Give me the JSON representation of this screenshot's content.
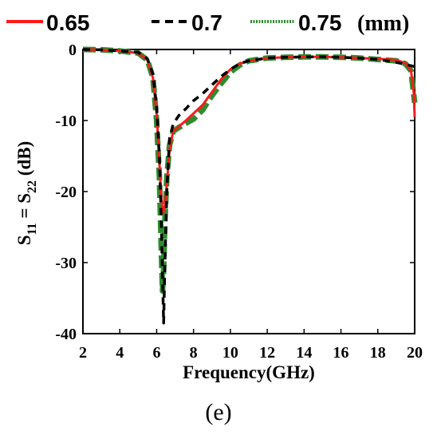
{
  "chart_data": {
    "type": "line",
    "title": "",
    "panel_label": "(e)",
    "xlabel": "Frequency(GHz)",
    "ylabel": "S11 = S22 (dB)",
    "ylabel_parts": {
      "s": "S",
      "sub1": "11",
      "eq": " = S",
      "sub2": "22",
      "unit": " (dB)"
    },
    "xlim": [
      2,
      20
    ],
    "ylim": [
      -40,
      0
    ],
    "xticks": [
      "2",
      "4",
      "6",
      "8",
      "10",
      "12",
      "14",
      "16",
      "18",
      "20"
    ],
    "yticks": [
      "0",
      "-10",
      "-20",
      "-30",
      "-40"
    ],
    "legend_unit": "(mm)",
    "grid": false,
    "legend_position": "top",
    "series": [
      {
        "name": "0.65",
        "color": "#ff1a1a",
        "style": "solid",
        "points": [
          [
            2,
            0
          ],
          [
            3,
            -0.05
          ],
          [
            4,
            -0.2
          ],
          [
            5,
            -0.5
          ],
          [
            5.5,
            -1.5
          ],
          [
            5.8,
            -4
          ],
          [
            6.0,
            -9
          ],
          [
            6.15,
            -16
          ],
          [
            6.25,
            -21
          ],
          [
            6.35,
            -23
          ],
          [
            6.45,
            -22
          ],
          [
            6.55,
            -19
          ],
          [
            6.7,
            -14
          ],
          [
            6.9,
            -11.5
          ],
          [
            7.5,
            -10.2
          ],
          [
            8.0,
            -9
          ],
          [
            8.5,
            -7.8
          ],
          [
            9.0,
            -6
          ],
          [
            9.5,
            -4.2
          ],
          [
            10.0,
            -2.8
          ],
          [
            10.5,
            -2
          ],
          [
            11,
            -1.6
          ],
          [
            12,
            -1.2
          ],
          [
            13,
            -1.1
          ],
          [
            14,
            -1.05
          ],
          [
            15,
            -1.05
          ],
          [
            16,
            -1.1
          ],
          [
            17,
            -1.2
          ],
          [
            18,
            -1.3
          ],
          [
            19,
            -1.5
          ],
          [
            19.5,
            -1.9
          ],
          [
            19.8,
            -3
          ],
          [
            19.95,
            -6
          ],
          [
            20,
            -9.5
          ]
        ]
      },
      {
        "name": "0.7",
        "color": "#000000",
        "style": "dashed",
        "points": [
          [
            2,
            0
          ],
          [
            3,
            -0.05
          ],
          [
            4,
            -0.2
          ],
          [
            5,
            -0.4
          ],
          [
            5.5,
            -1.3
          ],
          [
            5.8,
            -3.5
          ],
          [
            6.0,
            -8
          ],
          [
            6.15,
            -15
          ],
          [
            6.25,
            -24
          ],
          [
            6.32,
            -32
          ],
          [
            6.38,
            -38.5
          ],
          [
            6.45,
            -30
          ],
          [
            6.55,
            -20
          ],
          [
            6.7,
            -12.5
          ],
          [
            6.9,
            -10.5
          ],
          [
            7.2,
            -9.3
          ],
          [
            7.6,
            -8.3
          ],
          [
            8.0,
            -7.2
          ],
          [
            8.5,
            -6.2
          ],
          [
            9.0,
            -5
          ],
          [
            9.5,
            -3.8
          ],
          [
            10.0,
            -2.8
          ],
          [
            10.5,
            -2
          ],
          [
            11,
            -1.6
          ],
          [
            12,
            -1.2
          ],
          [
            13,
            -1.1
          ],
          [
            14,
            -1.05
          ],
          [
            15,
            -1.05
          ],
          [
            16,
            -1.1
          ],
          [
            17,
            -1.2
          ],
          [
            18,
            -1.4
          ],
          [
            19,
            -1.8
          ],
          [
            19.5,
            -2.1
          ],
          [
            20,
            -2.4
          ]
        ]
      },
      {
        "name": "0.75",
        "color": "#2e8b2e",
        "style": "dotted",
        "points": [
          [
            2,
            0
          ],
          [
            3,
            -0.05
          ],
          [
            4,
            -0.2
          ],
          [
            5,
            -0.5
          ],
          [
            5.5,
            -1.5
          ],
          [
            5.8,
            -4
          ],
          [
            6.0,
            -10
          ],
          [
            6.15,
            -18
          ],
          [
            6.25,
            -28
          ],
          [
            6.32,
            -34
          ],
          [
            6.38,
            -31
          ],
          [
            6.45,
            -24
          ],
          [
            6.55,
            -18
          ],
          [
            6.7,
            -13.5
          ],
          [
            6.9,
            -11.5
          ],
          [
            7.5,
            -10.5
          ],
          [
            8.0,
            -9.8
          ],
          [
            8.5,
            -8.5
          ],
          [
            9.0,
            -6.5
          ],
          [
            9.5,
            -4.8
          ],
          [
            10.0,
            -3.2
          ],
          [
            10.5,
            -2.2
          ],
          [
            11,
            -1.6
          ],
          [
            12,
            -1.2
          ],
          [
            13,
            -1.1
          ],
          [
            14,
            -1.05
          ],
          [
            15,
            -1.05
          ],
          [
            16,
            -1.1
          ],
          [
            17,
            -1.2
          ],
          [
            18,
            -1.4
          ],
          [
            19,
            -1.6
          ],
          [
            19.5,
            -2
          ],
          [
            19.8,
            -3
          ],
          [
            20,
            -7.5
          ]
        ]
      }
    ]
  }
}
